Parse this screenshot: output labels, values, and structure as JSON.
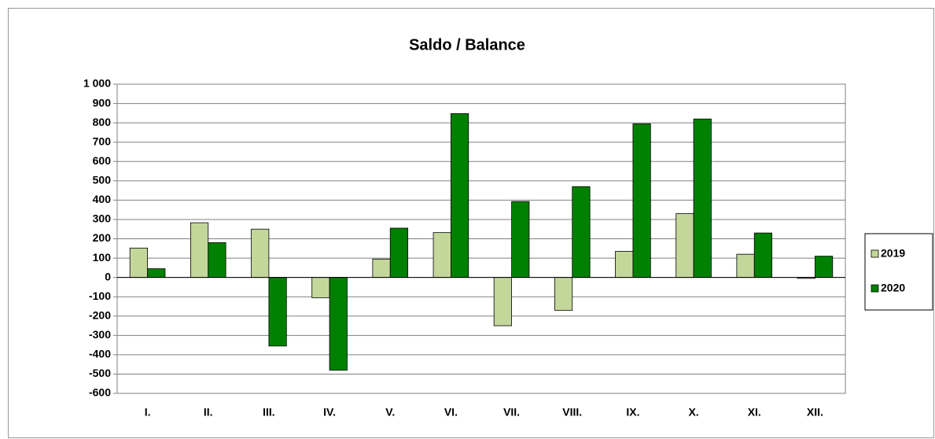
{
  "chart_data": {
    "type": "bar",
    "title": "Saldo / Balance",
    "categories": [
      "I.",
      "II.",
      "III.",
      "IV.",
      "V.",
      "VI.",
      "VII.",
      "VIII.",
      "IX.",
      "X.",
      "XI.",
      "XII."
    ],
    "series": [
      {
        "name": "2019",
        "color": "#c4d79b",
        "values": [
          152,
          283,
          250,
          -105,
          95,
          232,
          -250,
          -170,
          135,
          330,
          120,
          -5
        ]
      },
      {
        "name": "2020",
        "color": "#008000",
        "values": [
          45,
          180,
          -355,
          -480,
          255,
          848,
          393,
          470,
          795,
          820,
          230,
          110
        ]
      }
    ],
    "ylim": [
      -600,
      1000
    ],
    "yticks": [
      -600,
      -500,
      -400,
      -300,
      -200,
      -100,
      0,
      100,
      200,
      300,
      400,
      500,
      600,
      700,
      800,
      900,
      {
        "value": 1000,
        "label": "1 000"
      }
    ],
    "grid": true,
    "legend": "right"
  }
}
